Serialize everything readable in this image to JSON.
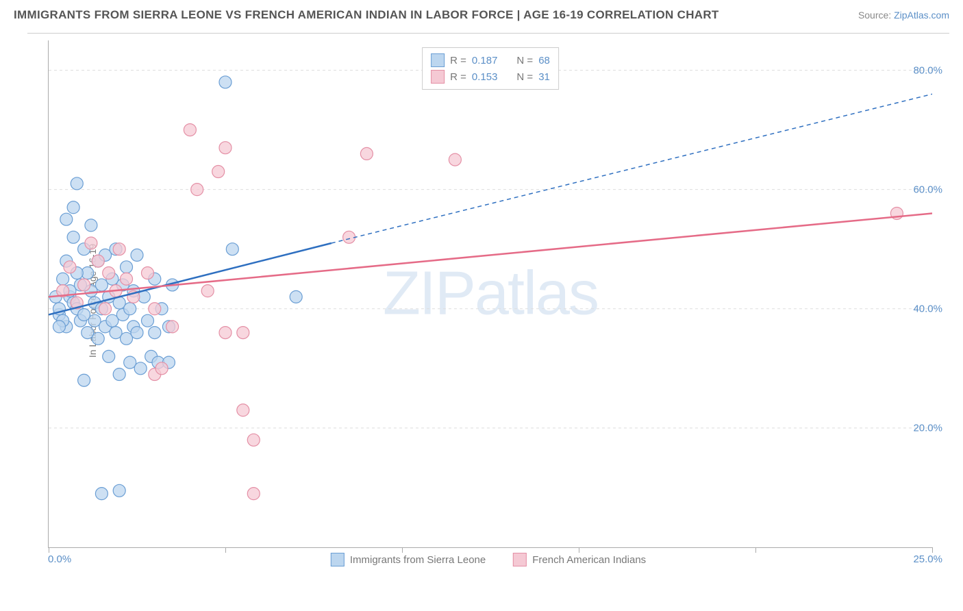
{
  "header": {
    "title": "IMMIGRANTS FROM SIERRA LEONE VS FRENCH AMERICAN INDIAN IN LABOR FORCE | AGE 16-19 CORRELATION CHART",
    "source_prefix": "Source: ",
    "source_link": "ZipAtlas.com"
  },
  "chart": {
    "type": "scatter",
    "ylabel": "In Labor Force | Age 16-19",
    "watermark": "ZIPatlas",
    "xlim": [
      0,
      25
    ],
    "ylim": [
      0,
      85
    ],
    "x_ticks": [
      0,
      5,
      10,
      15,
      20,
      25
    ],
    "x_tick_labels": {
      "0": "0.0%",
      "25": "25.0%"
    },
    "y_ticks": [
      20,
      40,
      60,
      80
    ],
    "y_tick_labels": {
      "20": "20.0%",
      "40": "40.0%",
      "60": "60.0%",
      "80": "80.0%"
    },
    "grid_color": "#dddddd",
    "axis_color": "#aaaaaa",
    "background_color": "#ffffff",
    "series": [
      {
        "name": "Immigrants from Sierra Leone",
        "marker_fill": "#bcd6ef",
        "marker_stroke": "#6a9ed4",
        "marker_opacity": 0.75,
        "marker_radius": 9,
        "line_color": "#2e6fc0",
        "line_width": 2.5,
        "r": "0.187",
        "n": "68",
        "regression": {
          "x1": 0,
          "y1": 39,
          "x2": 8,
          "y2": 51,
          "x2_ext": 25,
          "y2_ext": 76
        },
        "points": [
          [
            0.2,
            42
          ],
          [
            0.3,
            39
          ],
          [
            0.4,
            45
          ],
          [
            0.5,
            37
          ],
          [
            0.5,
            48
          ],
          [
            0.6,
            42
          ],
          [
            0.7,
            41
          ],
          [
            0.7,
            52
          ],
          [
            0.8,
            40
          ],
          [
            0.8,
            61
          ],
          [
            0.9,
            38
          ],
          [
            0.9,
            44
          ],
          [
            1.0,
            39
          ],
          [
            1.0,
            50
          ],
          [
            1.1,
            46
          ],
          [
            1.1,
            36
          ],
          [
            1.2,
            43
          ],
          [
            1.2,
            54
          ],
          [
            1.3,
            38
          ],
          [
            1.3,
            41
          ],
          [
            1.4,
            48
          ],
          [
            1.4,
            35
          ],
          [
            1.5,
            40
          ],
          [
            1.5,
            44
          ],
          [
            1.6,
            37
          ],
          [
            1.6,
            49
          ],
          [
            1.7,
            42
          ],
          [
            1.7,
            32
          ],
          [
            1.8,
            45
          ],
          [
            1.8,
            38
          ],
          [
            1.9,
            50
          ],
          [
            1.9,
            36
          ],
          [
            2.0,
            41
          ],
          [
            2.0,
            29
          ],
          [
            2.1,
            44
          ],
          [
            2.1,
            39
          ],
          [
            2.2,
            35
          ],
          [
            2.2,
            47
          ],
          [
            2.3,
            40
          ],
          [
            2.3,
            31
          ],
          [
            2.4,
            43
          ],
          [
            2.4,
            37
          ],
          [
            2.5,
            49
          ],
          [
            2.5,
            36
          ],
          [
            2.6,
            30
          ],
          [
            2.7,
            42
          ],
          [
            2.8,
            38
          ],
          [
            2.9,
            32
          ],
          [
            3.0,
            45
          ],
          [
            3.0,
            36
          ],
          [
            3.1,
            31
          ],
          [
            3.2,
            40
          ],
          [
            3.4,
            37
          ],
          [
            3.4,
            31
          ],
          [
            3.5,
            44
          ],
          [
            1.0,
            28
          ],
          [
            1.5,
            9
          ],
          [
            2.0,
            9.5
          ],
          [
            0.3,
            40
          ],
          [
            0.4,
            38
          ],
          [
            0.5,
            55
          ],
          [
            0.7,
            57
          ],
          [
            5.0,
            78
          ],
          [
            5.2,
            50
          ],
          [
            7.0,
            42
          ],
          [
            0.6,
            43
          ],
          [
            0.8,
            46
          ],
          [
            0.3,
            37
          ]
        ]
      },
      {
        "name": "French American Indians",
        "marker_fill": "#f5c9d4",
        "marker_stroke": "#e48fa5",
        "marker_opacity": 0.75,
        "marker_radius": 9,
        "line_color": "#e56b87",
        "line_width": 2.5,
        "r": "0.153",
        "n": "31",
        "regression": {
          "x1": 0,
          "y1": 42,
          "x2": 25,
          "y2": 56
        },
        "points": [
          [
            0.4,
            43
          ],
          [
            0.6,
            47
          ],
          [
            0.8,
            41
          ],
          [
            1.0,
            44
          ],
          [
            1.2,
            51
          ],
          [
            1.4,
            48
          ],
          [
            1.6,
            40
          ],
          [
            1.7,
            46
          ],
          [
            1.9,
            43
          ],
          [
            2.0,
            50
          ],
          [
            2.2,
            45
          ],
          [
            2.4,
            42
          ],
          [
            2.8,
            46
          ],
          [
            3.0,
            29
          ],
          [
            3.2,
            30
          ],
          [
            3.0,
            40
          ],
          [
            3.5,
            37
          ],
          [
            4.0,
            70
          ],
          [
            4.2,
            60
          ],
          [
            4.8,
            63
          ],
          [
            5.0,
            36
          ],
          [
            5.0,
            67
          ],
          [
            5.5,
            36
          ],
          [
            5.5,
            23
          ],
          [
            5.8,
            18
          ],
          [
            5.8,
            9
          ],
          [
            8.5,
            52
          ],
          [
            9.0,
            66
          ],
          [
            11.5,
            65
          ],
          [
            24.0,
            56
          ],
          [
            4.5,
            43
          ]
        ]
      }
    ],
    "legend_top": {
      "r_label": "R =",
      "n_label": "N ="
    },
    "legend_bottom": [
      {
        "label": "Immigrants from Sierra Leone",
        "fill": "#bcd6ef",
        "stroke": "#6a9ed4"
      },
      {
        "label": "French American Indians",
        "fill": "#f5c9d4",
        "stroke": "#e48fa5"
      }
    ]
  }
}
